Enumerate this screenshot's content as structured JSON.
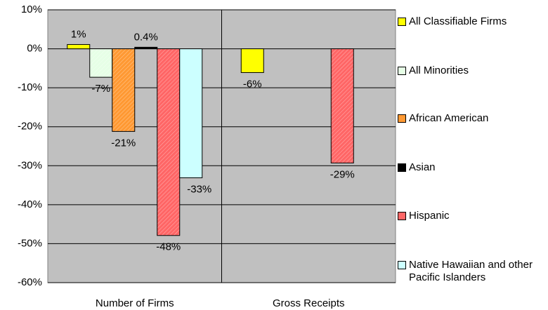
{
  "chart_data": {
    "type": "bar",
    "categories": [
      "Number of Firms",
      "Gross Receipts"
    ],
    "series": [
      {
        "name": "All Classifiable Firms",
        "color": "#ffff00",
        "values": [
          1.1,
          -6.1
        ],
        "value_labels": [
          "1%",
          "-6%"
        ]
      },
      {
        "name": "All Minorities",
        "color": "#e6ffe6",
        "values": [
          -7.3,
          null
        ],
        "value_labels": [
          "-7%",
          null
        ]
      },
      {
        "name": "African American",
        "color": "#ff9933",
        "values": [
          -21.2,
          null
        ],
        "value_labels": [
          "-21%",
          null
        ]
      },
      {
        "name": "Asian",
        "color": "#000000",
        "values": [
          0.4,
          null
        ],
        "value_labels": [
          "0.4%",
          null
        ]
      },
      {
        "name": "Hispanic",
        "color": "#ff6666",
        "values": [
          -47.9,
          -29.3
        ],
        "value_labels": [
          "-48%",
          "-29%"
        ]
      },
      {
        "name": "Native Hawaiian and other Pacific Islanders",
        "color": "#ccffff",
        "values": [
          -33.1,
          null
        ],
        "value_labels": [
          "-33%",
          null
        ]
      }
    ],
    "ylim": [
      -60,
      10
    ],
    "yticks": [
      {
        "value": -60,
        "label": "-60%"
      },
      {
        "value": -50,
        "label": "-50%"
      },
      {
        "value": -40,
        "label": "-40%"
      },
      {
        "value": -30,
        "label": "-30%"
      },
      {
        "value": -20,
        "label": "-20%"
      },
      {
        "value": -10,
        "label": "-10%"
      },
      {
        "value": 0,
        "label": "0%"
      },
      {
        "value": 10,
        "label": "10%"
      }
    ],
    "grid": true
  }
}
